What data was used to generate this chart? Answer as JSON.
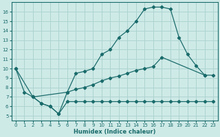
{
  "xlabel": "Humidex (Indice chaleur)",
  "background_color": "#ceeae7",
  "grid_color": "#aed4d0",
  "line_color": "#1a6b6b",
  "xlim": [
    -0.5,
    23.5
  ],
  "ylim": [
    4.5,
    17.0
  ],
  "xticks": [
    0,
    1,
    2,
    3,
    4,
    5,
    6,
    7,
    8,
    9,
    10,
    11,
    12,
    13,
    14,
    15,
    16,
    17,
    18,
    19,
    20,
    21,
    22,
    23
  ],
  "yticks": [
    5,
    6,
    7,
    8,
    9,
    10,
    11,
    12,
    13,
    14,
    15,
    16
  ],
  "series1_x": [
    0,
    1,
    2,
    3,
    4,
    5,
    6,
    7,
    8,
    9,
    10,
    11,
    12,
    13,
    14,
    15,
    16,
    17,
    18,
    19,
    20,
    21,
    22
  ],
  "series1_y": [
    10,
    7.5,
    7.0,
    6.3,
    6.0,
    5.2,
    7.5,
    9.5,
    9.7,
    10.0,
    11.5,
    12.0,
    13.3,
    14.0,
    15.0,
    16.3,
    16.5,
    16.5,
    16.3,
    13.3,
    11.5,
    10.3,
    9.3
  ],
  "series2_x": [
    0,
    2,
    6,
    7,
    8,
    9,
    10,
    11,
    12,
    13,
    14,
    15,
    16,
    17,
    22,
    23
  ],
  "series2_y": [
    10.0,
    7.0,
    7.5,
    7.8,
    8.0,
    8.3,
    8.7,
    9.0,
    9.2,
    9.5,
    9.8,
    10.0,
    10.2,
    11.2,
    9.3,
    9.3
  ],
  "series3_x": [
    2,
    3,
    4,
    5,
    6,
    7,
    8,
    9,
    10,
    11,
    12,
    13,
    14,
    15,
    16,
    17,
    18,
    19,
    20,
    21,
    22,
    23
  ],
  "series3_y": [
    7.0,
    6.3,
    6.0,
    5.2,
    6.5,
    6.5,
    6.5,
    6.5,
    6.5,
    6.5,
    6.5,
    6.5,
    6.5,
    6.5,
    6.5,
    6.5,
    6.5,
    6.5,
    6.5,
    6.5,
    6.5,
    6.5
  ]
}
